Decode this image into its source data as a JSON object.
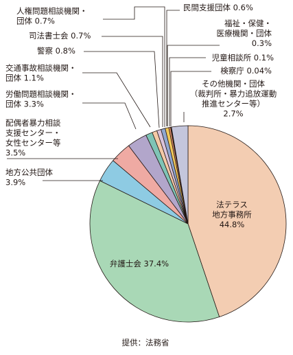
{
  "chart_data": {
    "type": "pie",
    "title": "",
    "source": "提供：法務省",
    "slices": [
      {
        "label_lines": [
          "法テラス",
          "地方事務所",
          "44.8%"
        ],
        "name": "法テラス地方事務所",
        "value": 44.8,
        "color": "#f3cdb2"
      },
      {
        "label_lines": [
          "弁護士会 37.4%"
        ],
        "name": "弁護士会",
        "value": 37.4,
        "color": "#a9d8b6"
      },
      {
        "label_lines": [
          "地方公共団体",
          "3.9%"
        ],
        "name": "地方公共団体",
        "value": 3.9,
        "color": "#8ecbe3"
      },
      {
        "label_lines": [
          "配偶者暴力相談",
          "支援センター・",
          "女性センター等",
          "3.5%"
        ],
        "name": "配偶者暴力相談支援センター・女性センター等",
        "value": 3.5,
        "color": "#efaaa3"
      },
      {
        "label_lines": [
          "労働問題相談機関・",
          "団体 3.3%"
        ],
        "name": "労働問題相談機関・団体",
        "value": 3.3,
        "color": "#b2a6cb"
      },
      {
        "label_lines": [
          "交通事故相談機関・",
          "団体 1.1%"
        ],
        "name": "交通事故相談機関・団体",
        "value": 1.1,
        "color": "#7fc4b6"
      },
      {
        "label_lines": [
          "警察 0.8%"
        ],
        "name": "警察",
        "value": 0.8,
        "color": "#f4c9a6"
      },
      {
        "label_lines": [
          "司法書士会 0.7%"
        ],
        "name": "司法書士会",
        "value": 0.7,
        "color": "#d9c2da"
      },
      {
        "label_lines": [
          "人権問題相談機関・",
          "団体 0.7%"
        ],
        "name": "人権問題相談機関・団体",
        "value": 0.7,
        "color": "#8fa6cf"
      },
      {
        "label_lines": [
          "民間支援団体 0.6%"
        ],
        "name": "民間支援団体",
        "value": 0.6,
        "color": "#f0c75a"
      },
      {
        "label_lines": [
          "福祉・保健・",
          "医療機関・団体",
          "0.3%"
        ],
        "name": "福祉・保健・医療機関・団体",
        "value": 0.3,
        "color": "#e08f6b"
      },
      {
        "label_lines": [
          "児童相談所 0.1%"
        ],
        "name": "児童相談所",
        "value": 0.1,
        "color": "#6b8fc4"
      },
      {
        "label_lines": [
          "検察庁 0.04%"
        ],
        "name": "検察庁",
        "value": 0.04,
        "color": "#c9a8c8"
      },
      {
        "label_lines": [
          "その他機関・団体",
          "（裁判所・暴力追放運動",
          "推進センター等）",
          "2.7%"
        ],
        "name": "その他機関・団体（裁判所・暴力追放運動推進センター等）",
        "value": 2.7,
        "color": "#c4c6dc"
      }
    ]
  }
}
